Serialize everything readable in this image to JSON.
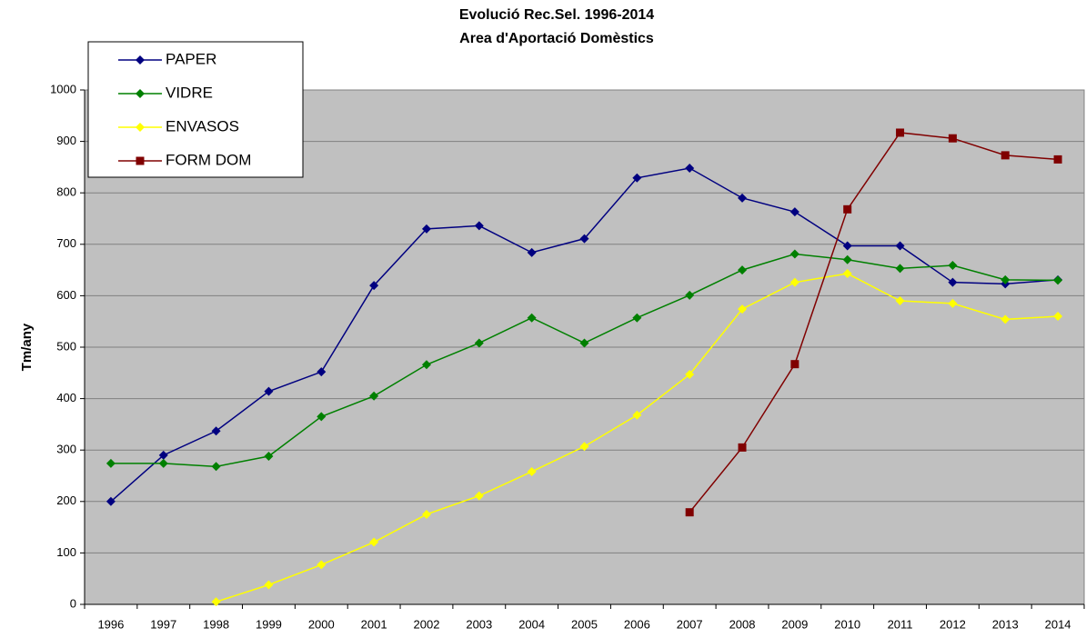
{
  "chart_data": {
    "type": "line",
    "title": "Evolució Rec.Sel. 1996-2014",
    "subtitle": "Area d'Aportació Domèstics",
    "y_label": "Tm/any",
    "categories": [
      "1996",
      "1997",
      "1998",
      "1999",
      "2000",
      "2001",
      "2002",
      "2003",
      "2004",
      "2005",
      "2006",
      "2007",
      "2008",
      "2009",
      "2010",
      "2011",
      "2012",
      "2013",
      "2014"
    ],
    "series": [
      {
        "name": "PAPER",
        "color": "#000080",
        "marker": "diamond",
        "values": [
          200,
          290,
          337,
          414,
          452,
          620,
          730,
          736,
          684,
          711,
          829,
          848,
          790,
          763,
          697,
          697,
          626,
          623,
          631
        ]
      },
      {
        "name": "VIDRE",
        "color": "#008000",
        "marker": "diamond",
        "values": [
          274,
          274,
          268,
          288,
          365,
          405,
          466,
          508,
          557,
          508,
          557,
          601,
          650,
          681,
          670,
          653,
          659,
          631,
          630
        ]
      },
      {
        "name": "ENVASOS",
        "color": "#ffff00",
        "marker": "diamond",
        "values": [
          null,
          null,
          5,
          38,
          77,
          121,
          175,
          211,
          258,
          307,
          368,
          447,
          574,
          626,
          643,
          590,
          585,
          554,
          560
        ]
      },
      {
        "name": "FORM DOM",
        "color": "#800000",
        "marker": "square",
        "values": [
          null,
          null,
          null,
          null,
          null,
          null,
          null,
          null,
          null,
          null,
          null,
          179,
          305,
          467,
          768,
          917,
          906,
          873,
          865
        ]
      }
    ],
    "ylim": [
      0,
      1000
    ],
    "yticks": [
      0,
      100,
      200,
      300,
      400,
      500,
      600,
      700,
      800,
      900,
      1000
    ],
    "grid": true,
    "legend": "top-left"
  }
}
